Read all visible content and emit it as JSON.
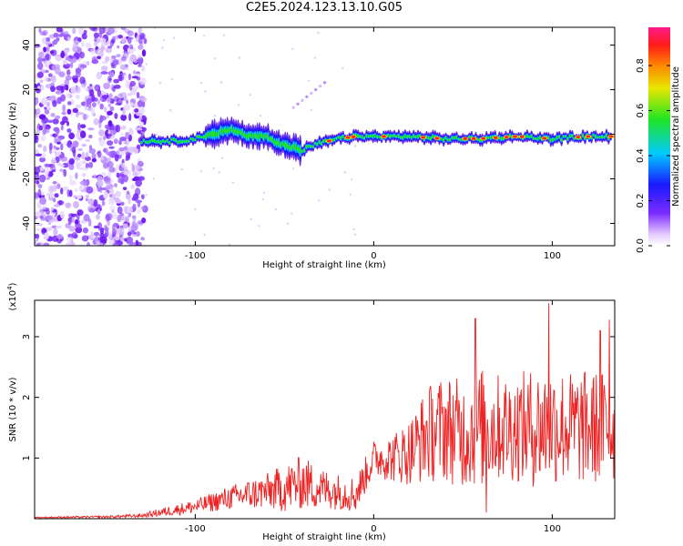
{
  "figure_title": "C2E5.2024.123.13.10.G05",
  "chart_data": [
    {
      "type": "heatmap",
      "xlabel": "Height of straight line (km)",
      "ylabel": "Frequency (Hz)",
      "xlim": [
        -190,
        135
      ],
      "ylim": [
        -50,
        48
      ],
      "xticks": [
        -100,
        0,
        100
      ],
      "yticks": [
        -40,
        -20,
        0,
        20,
        40
      ],
      "colorbar": {
        "label": "Normalized spectral amplitude",
        "range": [
          0,
          0.97
        ],
        "ticks": [
          0.0,
          0.2,
          0.4,
          0.6,
          0.8
        ]
      },
      "ridge_track": {
        "description_note": "",
        "x": [
          -130,
          -120,
          -110,
          -100,
          -90,
          -80,
          -70,
          -60,
          -50,
          -40,
          -30,
          -20,
          -10,
          0,
          20,
          40,
          60,
          80,
          100,
          120,
          133
        ],
        "y": [
          -3,
          -3,
          -3,
          -2,
          0,
          2,
          -1,
          -1,
          -5,
          -7,
          -4,
          -2,
          -1,
          -1,
          -1,
          -2,
          -2,
          -1,
          -2,
          -1,
          -1
        ]
      },
      "noise_region_x": [
        -190,
        -128
      ]
    },
    {
      "type": "line",
      "xlabel": "Height of straight line (km)",
      "ylabel": "SNR (10 * v/v)",
      "ylabel_multiplier": "(x10",
      "ylabel_multiplier_exp": "4",
      "ylabel_multiplier_close": ")",
      "xlim": [
        -190,
        135
      ],
      "ylim": [
        0,
        3.6
      ],
      "xticks": [
        -100,
        0,
        100
      ],
      "yticks": [
        1,
        2,
        3
      ],
      "series": [
        {
          "color": "#ee2222",
          "envelope_x": [
            -190,
            -150,
            -130,
            -120,
            -100,
            -80,
            -60,
            -50,
            -40,
            -30,
            -20,
            -10,
            0,
            10,
            20,
            30,
            40,
            50,
            60,
            70,
            80,
            90,
            100,
            110,
            120,
            133
          ],
          "envelope_mean": [
            0.02,
            0.03,
            0.05,
            0.1,
            0.2,
            0.35,
            0.45,
            0.5,
            0.6,
            0.5,
            0.45,
            0.4,
            1.0,
            1.0,
            1.1,
            1.4,
            1.5,
            1.4,
            1.5,
            1.5,
            1.5,
            1.5,
            1.55,
            1.5,
            1.5,
            1.5
          ],
          "envelope_amp": [
            0.01,
            0.02,
            0.03,
            0.07,
            0.12,
            0.2,
            0.3,
            0.4,
            0.45,
            0.35,
            0.3,
            0.3,
            0.3,
            0.4,
            0.55,
            0.8,
            0.9,
            0.9,
            1.0,
            0.9,
            0.9,
            1.0,
            1.0,
            0.95,
            0.95,
            0.95
          ],
          "peaks": [
            {
              "x": 57,
              "y": 3.3
            },
            {
              "x": 98,
              "y": 3.55
            },
            {
              "x": 132,
              "y": 3.28
            },
            {
              "x": 127,
              "y": 3.1
            },
            {
              "x": 63,
              "y": 0.1
            }
          ]
        }
      ]
    }
  ]
}
